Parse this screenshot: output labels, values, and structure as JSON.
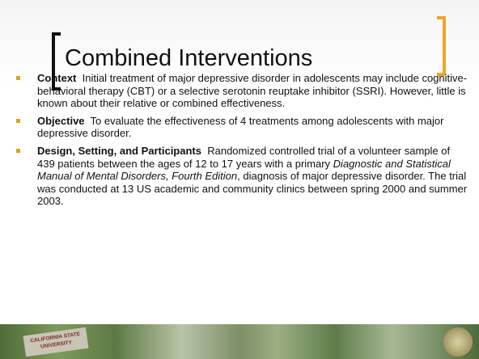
{
  "title": "Combined Interventions",
  "bullets": [
    {
      "label": "Context",
      "text_parts": [
        "Initial treatment of major depressive disorder in adolescents may include cognitive-behavioral therapy (CBT) or a selective serotonin reuptake inhibitor (SSRI). However, little is known about their relative or combined effectiveness."
      ]
    },
    {
      "label": "Objective",
      "text_parts": [
        "To evaluate the effectiveness of 4 treatments among adolescents with major depressive disorder."
      ]
    },
    {
      "label": "Design, Setting, and Participants",
      "text_parts": [
        "Randomized controlled trial of a volunteer sample of 439 patients between the ages of 12 to 17 years with a primary ",
        "Diagnostic and Statistical Manual of Mental Disorders, Fourth Edition",
        ", diagnosis of major depressive disorder. The trial was conducted at 13 US academic and community clinics between spring 2000 and summer 2003."
      ]
    }
  ],
  "footer_sign": [
    "CALIFORNIA STATE",
    "UNIVERSITY"
  ]
}
